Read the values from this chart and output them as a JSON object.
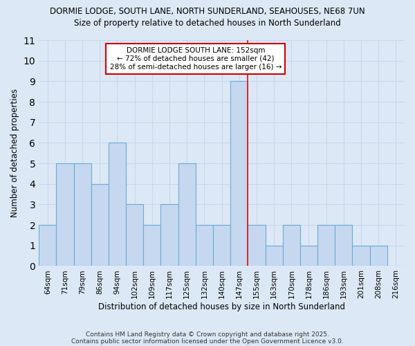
{
  "title1": "DORMIE LODGE, SOUTH LANE, NORTH SUNDERLAND, SEAHOUSES, NE68 7UN",
  "title2": "Size of property relative to detached houses in North Sunderland",
  "xlabel": "Distribution of detached houses by size in North Sunderland",
  "ylabel": "Number of detached properties",
  "categories": [
    "64sqm",
    "71sqm",
    "79sqm",
    "86sqm",
    "94sqm",
    "102sqm",
    "109sqm",
    "117sqm",
    "125sqm",
    "132sqm",
    "140sqm",
    "147sqm",
    "155sqm",
    "163sqm",
    "170sqm",
    "178sqm",
    "186sqm",
    "193sqm",
    "201sqm",
    "208sqm",
    "216sqm"
  ],
  "values": [
    2,
    5,
    5,
    4,
    6,
    3,
    2,
    3,
    5,
    2,
    2,
    9,
    2,
    1,
    2,
    1,
    2,
    2,
    1,
    1,
    0
  ],
  "bar_color": "#c5d8f0",
  "bar_edge_color": "#6aaad4",
  "highlight_index": 11,
  "annotation_line1": "DORMIE LODGE SOUTH LANE: 152sqm",
  "annotation_line2": "← 72% of detached houses are smaller (42)",
  "annotation_line3": "28% of semi-detached houses are larger (16) →",
  "ylim": [
    0,
    11
  ],
  "yticks": [
    0,
    1,
    2,
    3,
    4,
    5,
    6,
    7,
    8,
    9,
    10,
    11
  ],
  "footer1": "Contains HM Land Registry data © Crown copyright and database right 2025.",
  "footer2": "Contains public sector information licensed under the Open Government Licence v3.0.",
  "background_color": "#dce8f5",
  "plot_bg_color": "#ffffff",
  "grid_color": "#c5d8f0",
  "annotation_box_edge": "#cc0000",
  "annotation_box_bg": "#ffffff"
}
